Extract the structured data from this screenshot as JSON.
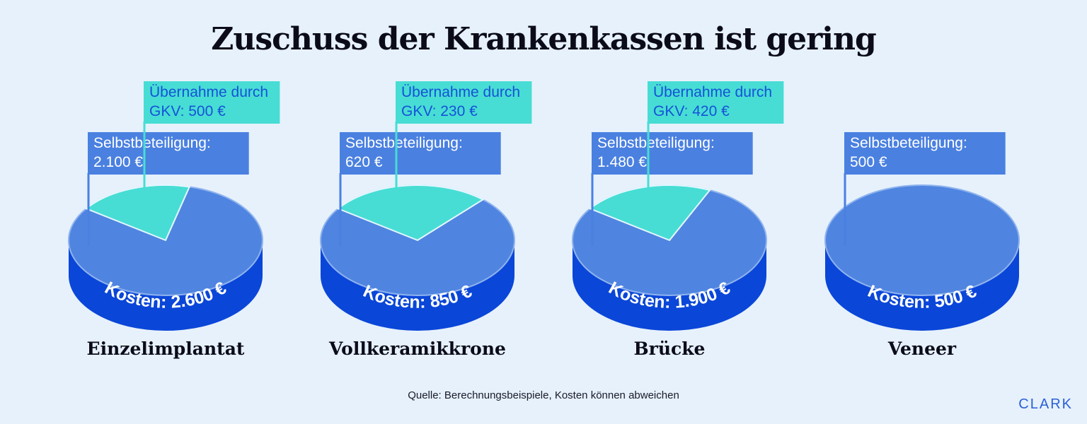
{
  "title": "Zuschuss der Krankenkassen ist gering",
  "source": "Quelle: Berechnungsbeispiele, Kosten können abweichen",
  "brand": "CLARK",
  "colors": {
    "background": "#e6f1fc",
    "gkv": "#47ddd4",
    "self": "#4f85e0",
    "side": "#0a46d8",
    "label_self": "#4a80e0",
    "label_gkv": "#47ddd4",
    "label_gkv_text": "#1652d8"
  },
  "chart_data": {
    "type": "pie",
    "currency": "€",
    "series_labels": {
      "gkv_line1": "Übernahme durch",
      "self_line1": "Selbstbeteiligung:"
    },
    "pies": [
      {
        "category": "Einzelimplantat",
        "total_label": "Kosten: 2.600 €",
        "total": 2600,
        "self": 2100,
        "self_label": "2.100 €",
        "gkv": 500,
        "gkv_label": "GKV: 500 €"
      },
      {
        "category": "Vollkeramikkrone",
        "total_label": "Kosten: 850 €",
        "total": 850,
        "self": 620,
        "self_label": "620 €",
        "gkv": 230,
        "gkv_label": "GKV: 230 €"
      },
      {
        "category": "Brücke",
        "total_label": "Kosten: 1.900 €",
        "total": 1900,
        "self": 1480,
        "self_label": "1.480 €",
        "gkv": 420,
        "gkv_label": "GKV: 420 €"
      },
      {
        "category": "Veneer",
        "total_label": "Kosten: 500 €",
        "total": 500,
        "self": 500,
        "self_label": "500 €",
        "gkv": 0,
        "gkv_label": ""
      }
    ]
  }
}
